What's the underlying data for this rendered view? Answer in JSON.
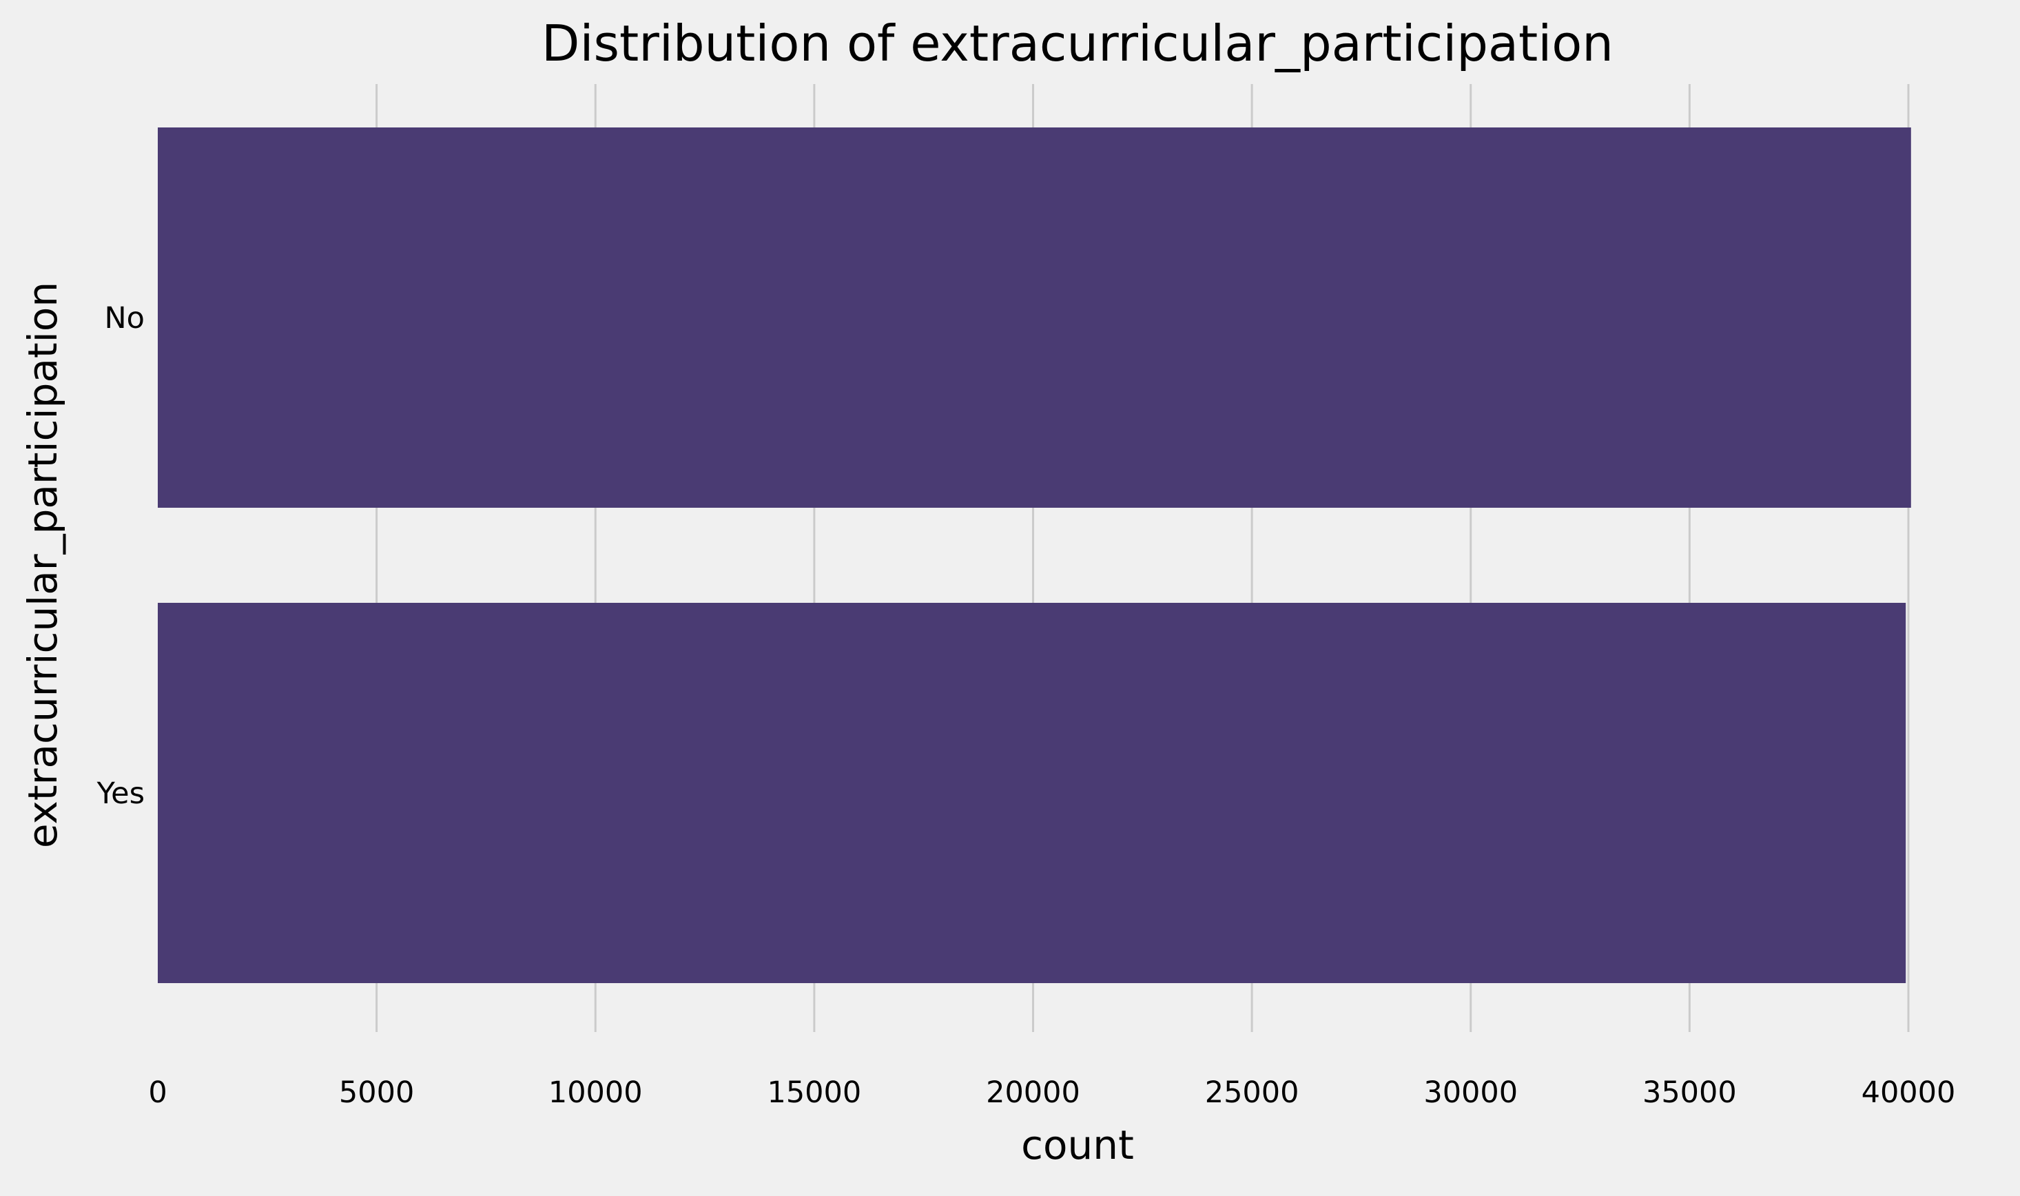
{
  "chart_data": {
    "type": "bar",
    "orientation": "horizontal",
    "title": "Distribution of extracurricular_participation",
    "xlabel": "count",
    "ylabel": "extracurricular_participation",
    "categories": [
      "No",
      "Yes"
    ],
    "values": [
      40060,
      39940
    ],
    "xlim": [
      0,
      40000
    ],
    "xticks": [
      "0",
      "5000",
      "10000",
      "15000",
      "20000",
      "25000",
      "30000",
      "35000",
      "40000"
    ],
    "grid": "vertical",
    "legend": "none",
    "colors": {
      "bar": "#4a3b73",
      "background": "#f0f0f0",
      "grid": "#cbcbcb"
    }
  }
}
